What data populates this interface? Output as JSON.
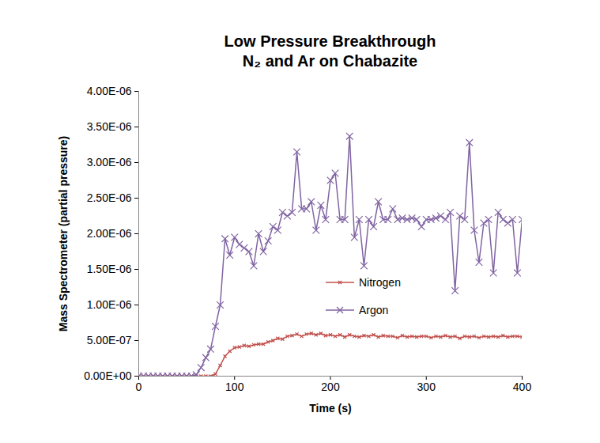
{
  "chart_data": {
    "type": "line",
    "title": "Low Pressure Breakthrough\nN₂ and Ar on Chabazite",
    "x_label": "Time (s)",
    "y_label": "Mass Spectrometer (partial pressure)",
    "xlim": [
      0,
      400
    ],
    "xticks": [
      0,
      100,
      200,
      300,
      400
    ],
    "ylim": [
      0,
      4e-06
    ],
    "yticks": [
      {
        "value": 0,
        "label": "0.00E+00"
      },
      {
        "value": 5e-07,
        "label": "5.00E-07"
      },
      {
        "value": 1e-06,
        "label": "1.00E-06"
      },
      {
        "value": 1.5e-06,
        "label": "1.50E-06"
      },
      {
        "value": 2e-06,
        "label": "2.00E-06"
      },
      {
        "value": 2.5e-06,
        "label": "2.50E-06"
      },
      {
        "value": 3e-06,
        "label": "3.00E-06"
      },
      {
        "value": 3.5e-06,
        "label": "3.50E-06"
      },
      {
        "value": 4e-06,
        "label": "4.00E-06"
      }
    ],
    "grid": false,
    "legend": "center",
    "x": [
      0,
      5,
      10,
      15,
      20,
      25,
      30,
      35,
      40,
      45,
      50,
      55,
      60,
      65,
      70,
      75,
      80,
      85,
      90,
      95,
      100,
      105,
      110,
      115,
      120,
      125,
      130,
      135,
      140,
      145,
      150,
      155,
      160,
      165,
      170,
      175,
      180,
      185,
      190,
      195,
      200,
      205,
      210,
      215,
      220,
      225,
      230,
      235,
      240,
      245,
      250,
      255,
      260,
      265,
      270,
      275,
      280,
      285,
      290,
      295,
      300,
      305,
      310,
      315,
      320,
      325,
      330,
      335,
      340,
      345,
      350,
      355,
      360,
      365,
      370,
      375,
      380,
      385,
      390,
      395,
      400
    ],
    "series": [
      {
        "name": "Nitrogen",
        "color": "#c0504d",
        "marker": "x",
        "line_style": "solid",
        "values": [
          0,
          0,
          0,
          0,
          0,
          0,
          0,
          0,
          0,
          0,
          0,
          0,
          0,
          0,
          0,
          0,
          3e-08,
          1.5e-07,
          2.8e-07,
          3.5e-07,
          4e-07,
          4.1e-07,
          4.3e-07,
          4.2e-07,
          4.4e-07,
          4.5e-07,
          4.5e-07,
          4.8e-07,
          5e-07,
          5.3e-07,
          5.2e-07,
          5.6e-07,
          5.7e-07,
          5.9e-07,
          5.6e-07,
          5.9e-07,
          6e-07,
          5.8e-07,
          6e-07,
          5.7e-07,
          5.8e-07,
          5.6e-07,
          5.8e-07,
          5.5e-07,
          5.8e-07,
          5.6e-07,
          5.5e-07,
          5.7e-07,
          5.6e-07,
          5.8e-07,
          5.5e-07,
          5.7e-07,
          5.6e-07,
          5.6e-07,
          5.4e-07,
          5.7e-07,
          5.5e-07,
          5.6e-07,
          5.5e-07,
          5.6e-07,
          5.6e-07,
          5.4e-07,
          5.6e-07,
          5.5e-07,
          5.7e-07,
          5.5e-07,
          5.6e-07,
          5.3e-07,
          5.6e-07,
          5.5e-07,
          5.6e-07,
          5.4e-07,
          5.6e-07,
          5.5e-07,
          5.6e-07,
          5.5e-07,
          5.7e-07,
          5.5e-07,
          5.6e-07,
          5.6e-07,
          5.5e-07
        ]
      },
      {
        "name": "Argon",
        "color": "#8064a2",
        "marker": "x",
        "line_style": "solid",
        "values": [
          0,
          0,
          0,
          0,
          0,
          0,
          0,
          0,
          0,
          0,
          0,
          0,
          2e-08,
          1.2e-07,
          2.6e-07,
          3.8e-07,
          7e-07,
          1e-06,
          1.93e-06,
          1.7e-06,
          1.95e-06,
          1.85e-06,
          1.8e-06,
          1.75e-06,
          1.55e-06,
          2e-06,
          1.75e-06,
          1.9e-06,
          2.1e-06,
          2.05e-06,
          2.3e-06,
          2.25e-06,
          2.3e-06,
          3.15e-06,
          2.35e-06,
          2.35e-06,
          2.45e-06,
          2.05e-06,
          2.4e-06,
          2.2e-06,
          2.75e-06,
          2.85e-06,
          2.2e-06,
          2.2e-06,
          3.37e-06,
          1.95e-06,
          2.2e-06,
          1.55e-06,
          2.2e-06,
          2.1e-06,
          2.45e-06,
          2.2e-06,
          2.2e-06,
          2.35e-06,
          2.2e-06,
          2.22e-06,
          2.2e-06,
          2.22e-06,
          2.2e-06,
          2.1e-06,
          2.2e-06,
          2.2e-06,
          2.22e-06,
          2.25e-06,
          2.2e-06,
          2.3e-06,
          1.2e-06,
          2.25e-06,
          2.2e-06,
          3.28e-06,
          2.05e-06,
          1.6e-06,
          2.15e-06,
          2.2e-06,
          1.45e-06,
          2.3e-06,
          2.2e-06,
          2.15e-06,
          2.2e-06,
          1.45e-06,
          2.2e-06
        ]
      }
    ]
  }
}
